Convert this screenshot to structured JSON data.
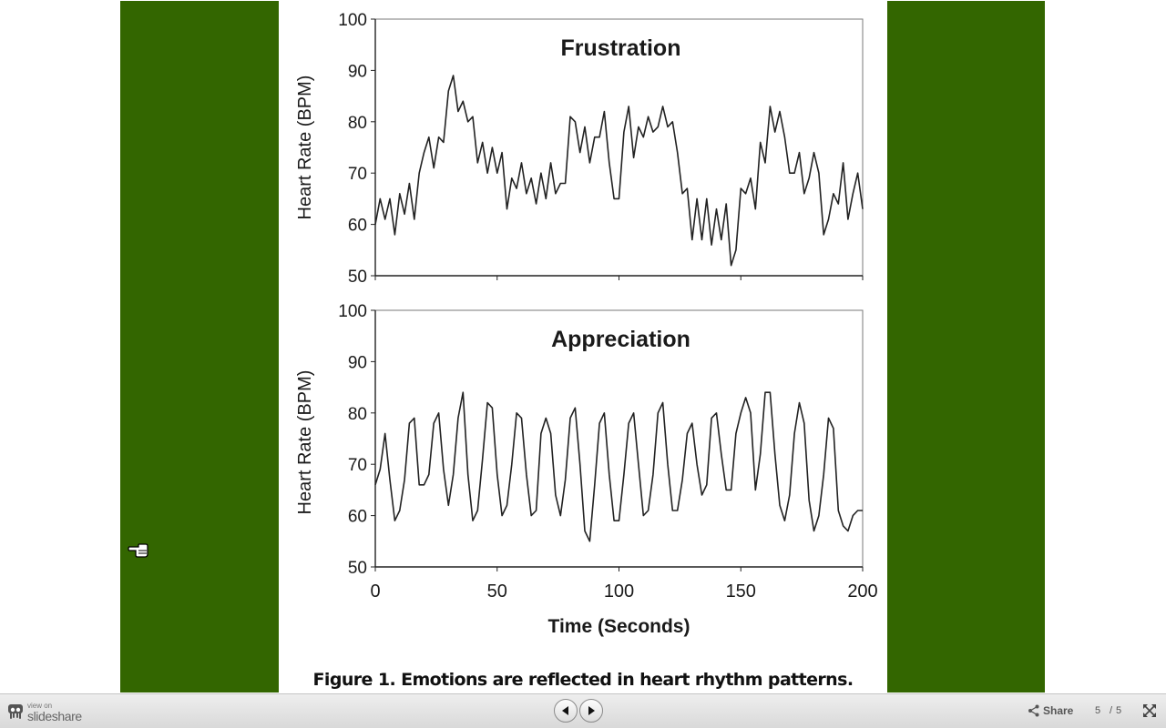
{
  "slide": {
    "panel_color": "#336600",
    "caption": "Figure 1. Emotions are reflected in heart rhythm patterns."
  },
  "chart_data": [
    {
      "type": "line",
      "title": "Frustration",
      "ylabel": "Heart Rate (BPM)",
      "xlabel": "",
      "xlim": [
        0,
        200
      ],
      "ylim": [
        50,
        100
      ],
      "yticks": [
        50,
        60,
        70,
        80,
        90,
        100
      ],
      "xticks": [
        0,
        50,
        100,
        150,
        200
      ],
      "xtick_labels_shown": false,
      "grid": false,
      "series": [
        {
          "x": [
            0,
            2,
            4,
            6,
            8,
            10,
            12,
            14,
            16,
            18,
            20,
            22,
            24,
            26,
            28,
            30,
            32,
            34,
            36,
            38,
            40,
            42,
            44,
            46,
            48,
            50,
            52,
            54,
            56,
            58,
            60,
            62,
            64,
            66,
            68,
            70,
            72,
            74,
            76,
            78,
            80,
            82,
            84,
            86,
            88,
            90,
            92,
            94,
            96,
            98,
            100,
            102,
            104,
            106,
            108,
            110,
            112,
            114,
            116,
            118,
            120,
            122,
            124,
            126,
            128,
            130,
            132,
            134,
            136,
            138,
            140,
            142,
            144,
            146,
            148,
            150,
            152,
            154,
            156,
            158,
            160,
            162,
            164,
            166,
            168,
            170,
            172,
            174,
            176,
            178,
            180,
            182,
            184,
            186,
            188,
            190,
            192,
            194,
            196,
            198,
            200
          ],
          "values": [
            60,
            65,
            61,
            65,
            58,
            66,
            62,
            68,
            61,
            70,
            74,
            77,
            71,
            77,
            76,
            86,
            89,
            82,
            84,
            80,
            81,
            72,
            76,
            70,
            75,
            70,
            74,
            63,
            69,
            67,
            72,
            66,
            69,
            64,
            70,
            65,
            72,
            66,
            68,
            68,
            81,
            80,
            74,
            79,
            72,
            77,
            77,
            82,
            72,
            65,
            65,
            78,
            83,
            73,
            79,
            77,
            81,
            78,
            79,
            83,
            79,
            80,
            74,
            66,
            67,
            57,
            65,
            57,
            65,
            56,
            63,
            57,
            64,
            52,
            55,
            67,
            66,
            69,
            63,
            76,
            72,
            83,
            78,
            82,
            77,
            70,
            70,
            74,
            66,
            69,
            74,
            70,
            58,
            61,
            66,
            64,
            72,
            61,
            66,
            70,
            63
          ]
        }
      ]
    },
    {
      "type": "line",
      "title": "Appreciation",
      "ylabel": "Heart Rate (BPM)",
      "xlabel": "Time (Seconds)",
      "xlim": [
        0,
        200
      ],
      "ylim": [
        50,
        100
      ],
      "yticks": [
        50,
        60,
        70,
        80,
        90,
        100
      ],
      "xticks": [
        0,
        50,
        100,
        150,
        200
      ],
      "xtick_labels_shown": true,
      "grid": false,
      "series": [
        {
          "x": [
            0,
            2,
            4,
            6,
            8,
            10,
            12,
            14,
            16,
            18,
            20,
            22,
            24,
            26,
            28,
            30,
            32,
            34,
            36,
            38,
            40,
            42,
            44,
            46,
            48,
            50,
            52,
            54,
            56,
            58,
            60,
            62,
            64,
            66,
            68,
            70,
            72,
            74,
            76,
            78,
            80,
            82,
            84,
            86,
            88,
            90,
            92,
            94,
            96,
            98,
            100,
            102,
            104,
            106,
            108,
            110,
            112,
            114,
            116,
            118,
            120,
            122,
            124,
            126,
            128,
            130,
            132,
            134,
            136,
            138,
            140,
            142,
            144,
            146,
            148,
            150,
            152,
            154,
            156,
            158,
            160,
            162,
            164,
            166,
            168,
            170,
            172,
            174,
            176,
            178,
            180,
            182,
            184,
            186,
            188,
            190,
            192,
            194,
            196,
            198,
            200
          ],
          "values": [
            66,
            69,
            76,
            67,
            59,
            61,
            67,
            78,
            79,
            66,
            66,
            68,
            78,
            80,
            69,
            62,
            68,
            79,
            84,
            68,
            59,
            61,
            71,
            82,
            81,
            68,
            60,
            62,
            70,
            80,
            79,
            68,
            60,
            61,
            76,
            79,
            76,
            64,
            60,
            67,
            79,
            81,
            70,
            57,
            55,
            66,
            78,
            80,
            68,
            59,
            59,
            68,
            78,
            80,
            70,
            60,
            61,
            68,
            80,
            82,
            70,
            61,
            61,
            67,
            76,
            78,
            70,
            64,
            66,
            79,
            80,
            72,
            65,
            65,
            76,
            80,
            83,
            80,
            65,
            72,
            84,
            84,
            72,
            62,
            59,
            64,
            76,
            82,
            78,
            63,
            57,
            60,
            68,
            79,
            77,
            61,
            58,
            57,
            60,
            61,
            61
          ]
        }
      ]
    }
  ],
  "player": {
    "brand_small": "view on",
    "brand_name": "slideshare",
    "share_label": "Share",
    "page_current": "5",
    "page_separator": "/",
    "page_total": "5"
  }
}
